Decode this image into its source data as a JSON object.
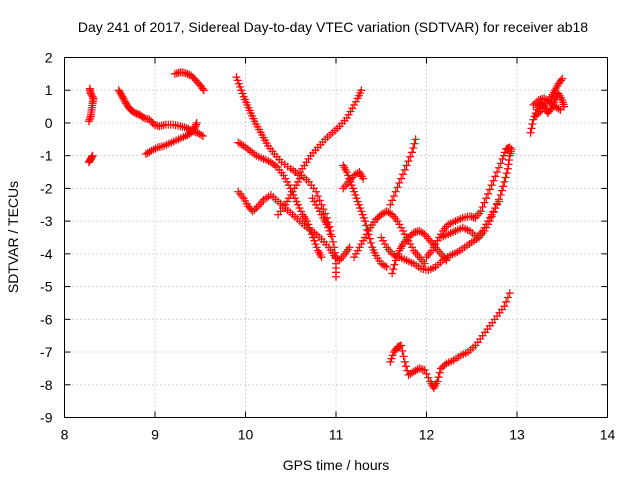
{
  "chart_data": {
    "type": "scatter",
    "title": "Day 241 of 2017, Sidereal Day-to-day VTEC variation (SDTVAR) for receiver ab18",
    "xlabel": "GPS time / hours",
    "ylabel": "SDTVAR / TECUs",
    "xlim": [
      8,
      14
    ],
    "ylim": [
      -9,
      2
    ],
    "xticks": [
      8,
      9,
      10,
      11,
      12,
      13,
      14
    ],
    "yticks": [
      2,
      1,
      0,
      -1,
      -2,
      -3,
      -4,
      -5,
      -6,
      -7,
      -8,
      -9
    ],
    "grid": true,
    "marker": "+",
    "color": "#ff0000",
    "series": [
      {
        "name": "s1",
        "points": [
          [
            8.27,
            -1.2
          ],
          [
            8.29,
            -1.1
          ],
          [
            8.31,
            -1.0
          ]
        ]
      },
      {
        "name": "s2",
        "points": [
          [
            8.27,
            0.05
          ],
          [
            8.29,
            0.2
          ],
          [
            8.3,
            0.4
          ],
          [
            8.31,
            0.6
          ],
          [
            8.32,
            0.75
          ],
          [
            8.29,
            0.9
          ],
          [
            8.28,
            1.05
          ]
        ]
      },
      {
        "name": "s3",
        "points": [
          [
            8.6,
            1.0
          ],
          [
            8.63,
            0.85
          ],
          [
            8.66,
            0.7
          ],
          [
            8.69,
            0.55
          ],
          [
            8.73,
            0.4
          ],
          [
            8.78,
            0.3
          ],
          [
            8.83,
            0.25
          ],
          [
            8.88,
            0.15
          ],
          [
            8.94,
            0.1
          ],
          [
            8.99,
            -0.05
          ],
          [
            9.05,
            -0.1
          ],
          [
            9.12,
            -0.05
          ],
          [
            9.2,
            -0.05
          ],
          [
            9.28,
            -0.1
          ],
          [
            9.35,
            -0.15
          ],
          [
            9.41,
            -0.25
          ],
          [
            9.47,
            -0.3
          ],
          [
            9.53,
            -0.4
          ]
        ]
      },
      {
        "name": "s4",
        "points": [
          [
            8.9,
            -0.95
          ],
          [
            8.96,
            -0.85
          ],
          [
            9.03,
            -0.75
          ],
          [
            9.1,
            -0.7
          ],
          [
            9.18,
            -0.6
          ],
          [
            9.26,
            -0.5
          ],
          [
            9.34,
            -0.4
          ],
          [
            9.4,
            -0.3
          ],
          [
            9.44,
            -0.15
          ],
          [
            9.46,
            -0.0
          ]
        ]
      },
      {
        "name": "s5",
        "points": [
          [
            9.22,
            1.5
          ],
          [
            9.28,
            1.55
          ],
          [
            9.34,
            1.52
          ],
          [
            9.4,
            1.45
          ],
          [
            9.45,
            1.3
          ],
          [
            9.5,
            1.15
          ],
          [
            9.54,
            1.0
          ]
        ]
      },
      {
        "name": "s6",
        "points": [
          [
            9.9,
            1.4
          ],
          [
            9.94,
            1.1
          ],
          [
            9.98,
            0.8
          ],
          [
            10.02,
            0.55
          ],
          [
            10.06,
            0.3
          ],
          [
            10.1,
            0.05
          ],
          [
            10.15,
            -0.2
          ],
          [
            10.2,
            -0.45
          ],
          [
            10.25,
            -0.7
          ],
          [
            10.32,
            -0.95
          ],
          [
            10.4,
            -1.2
          ],
          [
            10.5,
            -1.4
          ],
          [
            10.58,
            -1.55
          ]
        ]
      },
      {
        "name": "s7",
        "points": [
          [
            9.92,
            -0.6
          ],
          [
            9.98,
            -0.7
          ],
          [
            10.05,
            -0.85
          ],
          [
            10.12,
            -1.0
          ],
          [
            10.2,
            -1.1
          ],
          [
            10.28,
            -1.2
          ],
          [
            10.35,
            -1.35
          ],
          [
            10.42,
            -1.6
          ],
          [
            10.48,
            -1.9
          ],
          [
            10.53,
            -2.2
          ],
          [
            10.58,
            -2.5
          ],
          [
            10.63,
            -2.8
          ],
          [
            10.68,
            -3.0
          ],
          [
            10.72,
            -3.3
          ],
          [
            10.76,
            -3.6
          ],
          [
            10.8,
            -3.9
          ],
          [
            10.84,
            -4.1
          ]
        ]
      },
      {
        "name": "s8",
        "points": [
          [
            9.92,
            -2.1
          ],
          [
            9.98,
            -2.3
          ],
          [
            10.03,
            -2.55
          ],
          [
            10.08,
            -2.7
          ],
          [
            10.14,
            -2.55
          ],
          [
            10.2,
            -2.35
          ],
          [
            10.28,
            -2.2
          ],
          [
            10.36,
            -2.4
          ],
          [
            10.44,
            -2.6
          ],
          [
            10.52,
            -2.8
          ],
          [
            10.6,
            -3.0
          ],
          [
            10.68,
            -3.2
          ],
          [
            10.76,
            -3.35
          ],
          [
            10.84,
            -3.55
          ],
          [
            10.92,
            -3.8
          ],
          [
            10.98,
            -4.05
          ],
          [
            11.04,
            -4.2
          ],
          [
            11.1,
            -4.0
          ],
          [
            11.15,
            -3.8
          ]
        ]
      },
      {
        "name": "s9",
        "points": [
          [
            10.58,
            -1.6
          ],
          [
            10.65,
            -1.3
          ],
          [
            10.72,
            -1.0
          ],
          [
            10.8,
            -0.75
          ],
          [
            10.88,
            -0.5
          ],
          [
            10.96,
            -0.3
          ],
          [
            11.04,
            -0.1
          ],
          [
            11.12,
            0.15
          ],
          [
            11.18,
            0.45
          ],
          [
            11.24,
            0.75
          ],
          [
            11.28,
            1.0
          ]
        ]
      },
      {
        "name": "s10",
        "points": [
          [
            10.36,
            -2.8
          ],
          [
            10.44,
            -2.5
          ],
          [
            10.5,
            -2.2
          ],
          [
            10.56,
            -1.9
          ],
          [
            10.62,
            -1.6
          ],
          [
            10.7,
            -1.8
          ],
          [
            10.78,
            -2.1
          ],
          [
            10.84,
            -2.5
          ],
          [
            10.9,
            -2.9
          ],
          [
            10.94,
            -3.3
          ],
          [
            10.98,
            -3.8
          ],
          [
            11.0,
            -4.3
          ],
          [
            11.0,
            -4.7
          ]
        ]
      },
      {
        "name": "s11",
        "points": [
          [
            10.74,
            -2.3
          ],
          [
            10.8,
            -2.6
          ],
          [
            10.86,
            -2.9
          ],
          [
            10.9,
            -3.1
          ],
          [
            10.94,
            -3.4
          ]
        ]
      },
      {
        "name": "s12",
        "points": [
          [
            11.08,
            -1.3
          ],
          [
            11.12,
            -1.5
          ],
          [
            11.16,
            -1.8
          ],
          [
            11.2,
            -2.1
          ],
          [
            11.24,
            -2.4
          ],
          [
            11.28,
            -2.7
          ],
          [
            11.32,
            -3.0
          ],
          [
            11.36,
            -3.4
          ],
          [
            11.4,
            -3.8
          ],
          [
            11.44,
            -4.05
          ],
          [
            11.5,
            -4.3
          ],
          [
            11.56,
            -4.4
          ]
        ]
      },
      {
        "name": "s13",
        "points": [
          [
            11.08,
            -2.0
          ],
          [
            11.14,
            -1.8
          ],
          [
            11.2,
            -1.6
          ],
          [
            11.26,
            -1.5
          ],
          [
            11.3,
            -1.7
          ]
        ]
      },
      {
        "name": "s14",
        "points": [
          [
            11.2,
            -4.1
          ],
          [
            11.26,
            -3.8
          ],
          [
            11.32,
            -3.5
          ],
          [
            11.38,
            -3.2
          ],
          [
            11.44,
            -2.95
          ],
          [
            11.5,
            -2.8
          ],
          [
            11.56,
            -2.7
          ],
          [
            11.62,
            -2.8
          ],
          [
            11.68,
            -3.0
          ],
          [
            11.74,
            -3.3
          ],
          [
            11.8,
            -3.6
          ],
          [
            11.86,
            -3.9
          ],
          [
            11.92,
            -4.1
          ],
          [
            11.98,
            -4.3
          ]
        ]
      },
      {
        "name": "s15",
        "points": [
          [
            11.5,
            -3.5
          ],
          [
            11.56,
            -3.8
          ],
          [
            11.62,
            -4.0
          ],
          [
            11.7,
            -4.1
          ],
          [
            11.78,
            -4.2
          ],
          [
            11.86,
            -4.3
          ],
          [
            11.94,
            -4.45
          ],
          [
            12.02,
            -4.5
          ],
          [
            12.1,
            -4.4
          ],
          [
            12.18,
            -4.2
          ],
          [
            12.26,
            -4.05
          ],
          [
            12.34,
            -3.95
          ],
          [
            12.42,
            -3.8
          ],
          [
            12.5,
            -3.65
          ],
          [
            12.58,
            -3.5
          ],
          [
            12.64,
            -3.3
          ],
          [
            12.7,
            -3.0
          ],
          [
            12.76,
            -2.6
          ],
          [
            12.82,
            -2.2
          ],
          [
            12.86,
            -1.8
          ],
          [
            12.9,
            -1.4
          ],
          [
            12.92,
            -1.0
          ],
          [
            12.94,
            -0.8
          ]
        ]
      },
      {
        "name": "s16",
        "points": [
          [
            11.6,
            -2.5
          ],
          [
            11.66,
            -2.1
          ],
          [
            11.72,
            -1.7
          ],
          [
            11.78,
            -1.3
          ],
          [
            11.84,
            -0.9
          ],
          [
            11.88,
            -0.5
          ]
        ]
      },
      {
        "name": "s17",
        "points": [
          [
            11.62,
            -4.6
          ],
          [
            11.66,
            -4.2
          ],
          [
            11.7,
            -3.9
          ],
          [
            11.74,
            -3.7
          ],
          [
            11.8,
            -3.5
          ],
          [
            11.86,
            -3.35
          ],
          [
            11.92,
            -3.3
          ],
          [
            11.98,
            -3.4
          ],
          [
            12.04,
            -3.6
          ],
          [
            12.1,
            -3.8
          ],
          [
            12.16,
            -4.0
          ],
          [
            12.22,
            -4.2
          ]
        ]
      },
      {
        "name": "s18",
        "points": [
          [
            12.0,
            -4.1
          ],
          [
            12.06,
            -3.9
          ],
          [
            12.12,
            -3.6
          ],
          [
            12.18,
            -3.3
          ],
          [
            12.24,
            -3.1
          ],
          [
            12.32,
            -3.0
          ],
          [
            12.4,
            -2.9
          ],
          [
            12.48,
            -2.85
          ],
          [
            12.54,
            -2.9
          ],
          [
            12.6,
            -2.7
          ],
          [
            12.66,
            -2.3
          ],
          [
            12.72,
            -1.9
          ],
          [
            12.78,
            -1.5
          ],
          [
            12.84,
            -1.1
          ],
          [
            12.88,
            -0.8
          ],
          [
            12.92,
            -0.75
          ]
        ]
      },
      {
        "name": "s19",
        "points": [
          [
            12.16,
            -3.5
          ],
          [
            12.24,
            -3.4
          ],
          [
            12.32,
            -3.3
          ],
          [
            12.4,
            -3.2
          ],
          [
            12.48,
            -3.3
          ],
          [
            12.56,
            -3.5
          ],
          [
            12.62,
            -3.3
          ],
          [
            12.68,
            -3.0
          ],
          [
            12.74,
            -2.7
          ],
          [
            12.8,
            -2.4
          ]
        ]
      },
      {
        "name": "s20",
        "points": [
          [
            11.6,
            -7.3
          ],
          [
            11.64,
            -7.0
          ],
          [
            11.68,
            -6.85
          ],
          [
            11.72,
            -6.8
          ],
          [
            11.76,
            -7.3
          ],
          [
            11.8,
            -7.7
          ],
          [
            11.86,
            -7.6
          ],
          [
            11.92,
            -7.5
          ],
          [
            11.98,
            -7.55
          ],
          [
            12.04,
            -7.9
          ],
          [
            12.08,
            -8.1
          ],
          [
            12.12,
            -7.9
          ],
          [
            12.16,
            -7.5
          ],
          [
            12.22,
            -7.35
          ],
          [
            12.3,
            -7.25
          ],
          [
            12.38,
            -7.1
          ],
          [
            12.46,
            -7.0
          ],
          [
            12.54,
            -6.8
          ],
          [
            12.62,
            -6.5
          ],
          [
            12.7,
            -6.2
          ],
          [
            12.78,
            -5.9
          ],
          [
            12.86,
            -5.6
          ],
          [
            12.92,
            -5.2
          ]
        ]
      },
      {
        "name": "s21",
        "points": [
          [
            13.15,
            -0.3
          ],
          [
            13.18,
            0.1
          ],
          [
            13.22,
            0.4
          ],
          [
            13.26,
            0.6
          ],
          [
            13.3,
            0.5
          ],
          [
            13.34,
            0.3
          ],
          [
            13.38,
            0.45
          ],
          [
            13.42,
            0.7
          ],
          [
            13.46,
            0.9
          ],
          [
            13.5,
            0.7
          ],
          [
            13.52,
            0.5
          ]
        ]
      },
      {
        "name": "s22",
        "points": [
          [
            13.2,
            0.2
          ],
          [
            13.26,
            0.35
          ],
          [
            13.32,
            0.6
          ],
          [
            13.38,
            0.8
          ],
          [
            13.42,
            1.0
          ],
          [
            13.46,
            1.2
          ],
          [
            13.5,
            1.35
          ]
        ]
      },
      {
        "name": "s23",
        "points": [
          [
            13.18,
            0.55
          ],
          [
            13.24,
            0.7
          ],
          [
            13.3,
            0.75
          ],
          [
            13.36,
            0.65
          ],
          [
            13.42,
            0.5
          ],
          [
            13.48,
            0.4
          ]
        ]
      }
    ]
  }
}
